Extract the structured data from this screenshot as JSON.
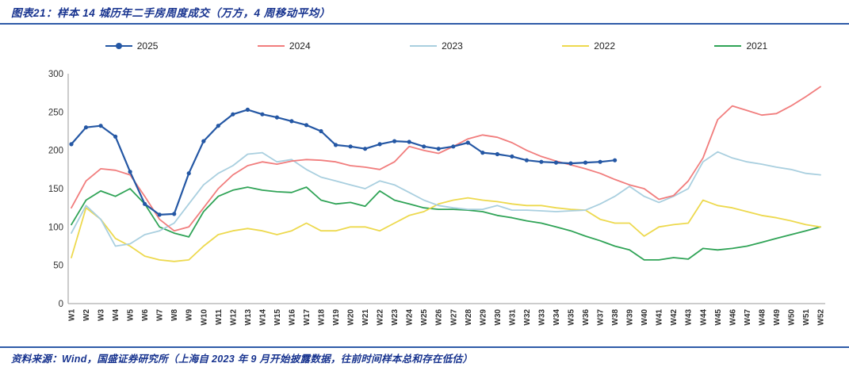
{
  "header": {
    "title": "图表21：样本 14 城历年二手房周度成交（万方，4 周移动平均）"
  },
  "footer": {
    "source": "资料来源：Wind，国盛证券研究所（上海自 2023 年 9 月开始披露数据，往前时间样本总和存在低估）"
  },
  "chart_data": {
    "type": "line",
    "title": "样本14城历年二手房周度成交（万方，4周移动平均）",
    "xlabel": "",
    "ylabel": "",
    "ylim": [
      0,
      300
    ],
    "yticks": [
      0,
      50,
      100,
      150,
      200,
      250,
      300
    ],
    "grid": false,
    "legend_position": "top",
    "x": [
      "W1",
      "W2",
      "W3",
      "W4",
      "W5",
      "W6",
      "W7",
      "W8",
      "W9",
      "W10",
      "W11",
      "W12",
      "W13",
      "W14",
      "W15",
      "W16",
      "W17",
      "W18",
      "W19",
      "W20",
      "W21",
      "W22",
      "W23",
      "W24",
      "W25",
      "W26",
      "W27",
      "W28",
      "W29",
      "W30",
      "W31",
      "W32",
      "W33",
      "W34",
      "W35",
      "W36",
      "W37",
      "W38",
      "W39",
      "W40",
      "W41",
      "W42",
      "W43",
      "W44",
      "W45",
      "W46",
      "W47",
      "W48",
      "W49",
      "W50",
      "W51",
      "W52"
    ],
    "series": [
      {
        "name": "2025",
        "color": "#2457A4",
        "marker": "circle",
        "stroke_width": 2.2,
        "values": [
          208,
          230,
          232,
          218,
          172,
          130,
          116,
          117,
          170,
          212,
          232,
          247,
          253,
          247,
          243,
          238,
          233,
          225,
          207,
          205,
          202,
          208,
          212,
          211,
          205,
          202,
          205,
          210,
          197,
          195,
          192,
          187,
          185,
          184,
          183,
          184,
          185,
          187,
          null,
          null,
          null,
          null,
          null,
          null,
          null,
          null,
          null,
          null,
          null,
          null,
          null,
          null
        ]
      },
      {
        "name": "2024",
        "color": "#F17D7D",
        "marker": "none",
        "stroke_width": 1.8,
        "values": [
          125,
          160,
          176,
          174,
          168,
          140,
          110,
          95,
          100,
          125,
          150,
          168,
          180,
          185,
          182,
          186,
          188,
          187,
          185,
          180,
          178,
          175,
          185,
          205,
          200,
          196,
          205,
          215,
          220,
          217,
          210,
          200,
          192,
          186,
          181,
          176,
          170,
          162,
          155,
          150,
          136,
          141,
          160,
          190,
          240,
          258,
          252,
          246,
          248,
          258,
          270,
          283
        ]
      },
      {
        "name": "2023",
        "color": "#A9CFDF",
        "marker": "none",
        "stroke_width": 1.8,
        "values": [
          92,
          128,
          110,
          75,
          78,
          90,
          95,
          105,
          130,
          155,
          170,
          180,
          195,
          197,
          185,
          188,
          175,
          165,
          160,
          155,
          150,
          160,
          155,
          145,
          135,
          128,
          125,
          123,
          123,
          128,
          122,
          122,
          121,
          120,
          121,
          122,
          130,
          140,
          153,
          140,
          132,
          140,
          150,
          185,
          198,
          190,
          185,
          182,
          178,
          175,
          170,
          168
        ]
      },
      {
        "name": "2022",
        "color": "#EDD94E",
        "marker": "none",
        "stroke_width": 1.8,
        "values": [
          60,
          125,
          110,
          85,
          75,
          62,
          57,
          55,
          57,
          75,
          90,
          95,
          98,
          95,
          90,
          95,
          105,
          95,
          95,
          100,
          100,
          95,
          105,
          115,
          120,
          130,
          135,
          138,
          135,
          133,
          130,
          128,
          128,
          125,
          123,
          122,
          110,
          105,
          105,
          88,
          100,
          103,
          105,
          135,
          128,
          125,
          120,
          115,
          112,
          108,
          103,
          100
        ]
      },
      {
        "name": "2021",
        "color": "#2FA356",
        "marker": "none",
        "stroke_width": 1.8,
        "values": [
          103,
          135,
          147,
          140,
          150,
          130,
          100,
          92,
          87,
          120,
          140,
          148,
          152,
          148,
          146,
          145,
          152,
          135,
          130,
          132,
          127,
          147,
          135,
          130,
          125,
          123,
          123,
          122,
          120,
          115,
          112,
          108,
          105,
          100,
          95,
          88,
          82,
          75,
          70,
          57,
          57,
          60,
          58,
          72,
          70,
          72,
          75,
          80,
          85,
          90,
          95,
          100
        ]
      }
    ]
  }
}
